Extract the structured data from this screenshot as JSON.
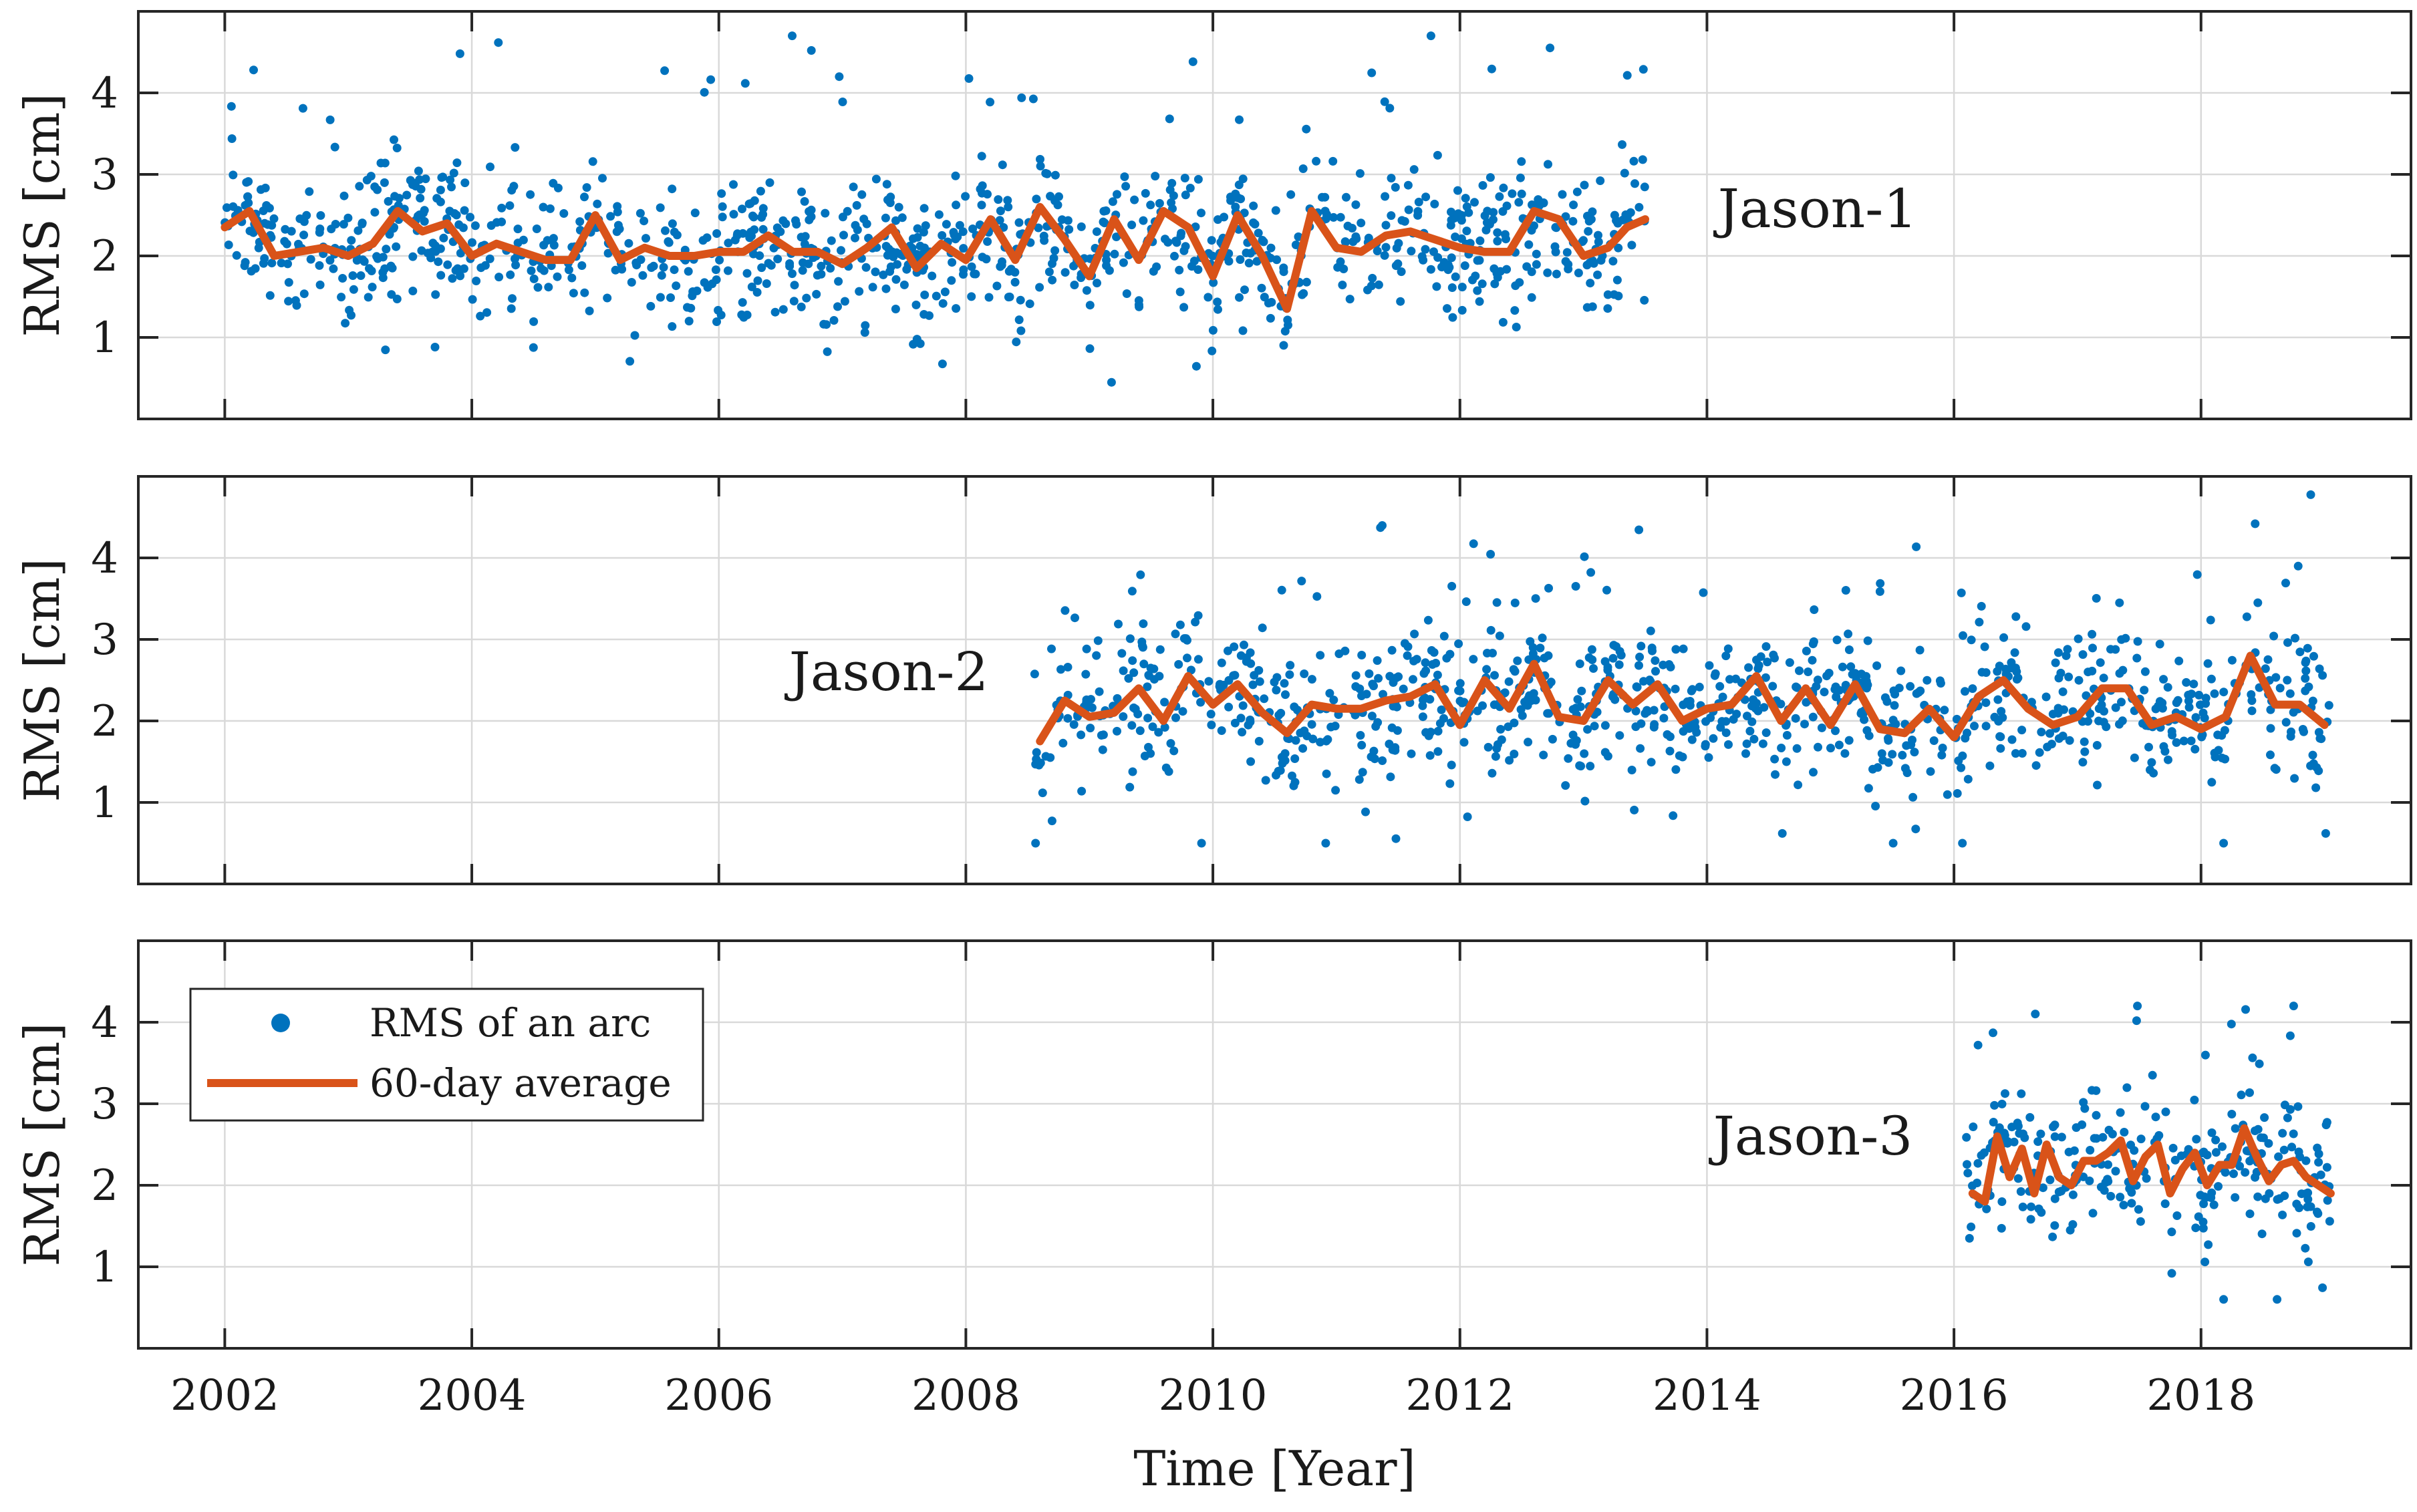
{
  "colors": {
    "points": "#0072bd",
    "average": "#d95319",
    "grid": "#d9d9d9",
    "axes": "#262626"
  },
  "chart_data": {
    "type": "scatter",
    "layout": "3 stacked subplots sharing x-axis",
    "xlabel": "Time [Year]",
    "xlim": [
      2001.3,
      2019.7
    ],
    "xticks": [
      2002,
      2004,
      2006,
      2008,
      2010,
      2012,
      2014,
      2016,
      2018
    ],
    "legend": {
      "location": "upper-left of bottom panel",
      "entries": [
        {
          "label": "RMS of an arc",
          "kind": "marker"
        },
        {
          "label": "60-day average",
          "kind": "line"
        }
      ]
    },
    "panels": [
      {
        "name": "Jason-1",
        "label": "Jason-1",
        "ylabel": "RMS [cm]",
        "ylim": [
          0,
          5
        ],
        "yticks": [
          1,
          2,
          3,
          4
        ],
        "x_range": [
          2002.0,
          2013.5
        ],
        "seed": 11,
        "series": [
          {
            "name": "RMS of an arc",
            "type": "scatter",
            "approx_mean_cm": 2.1,
            "approx_spread_cm": [
              0.2,
              4.7
            ]
          },
          {
            "name": "60-day average",
            "type": "line",
            "x": [
              2002.0,
              2002.2,
              2002.4,
              2002.6,
              2002.8,
              2003.0,
              2003.2,
              2003.4,
              2003.6,
              2003.8,
              2004.0,
              2004.2,
              2004.4,
              2004.6,
              2004.8,
              2005.0,
              2005.2,
              2005.4,
              2005.6,
              2005.8,
              2006.0,
              2006.2,
              2006.4,
              2006.6,
              2006.8,
              2007.0,
              2007.2,
              2007.4,
              2007.6,
              2007.8,
              2008.0,
              2008.2,
              2008.4,
              2008.6,
              2008.8,
              2009.0,
              2009.2,
              2009.4,
              2009.6,
              2009.8,
              2010.0,
              2010.2,
              2010.4,
              2010.6,
              2010.8,
              2011.0,
              2011.2,
              2011.4,
              2011.6,
              2011.8,
              2012.0,
              2012.2,
              2012.4,
              2012.6,
              2012.8,
              2013.0,
              2013.2,
              2013.35,
              2013.5
            ],
            "y": [
              2.35,
              2.55,
              2.0,
              2.05,
              2.1,
              2.0,
              2.15,
              2.55,
              2.3,
              2.4,
              2.0,
              2.15,
              2.05,
              1.95,
              1.95,
              2.5,
              1.95,
              2.1,
              2.0,
              2.0,
              2.05,
              2.05,
              2.25,
              2.05,
              2.05,
              1.9,
              2.1,
              2.35,
              1.85,
              2.15,
              1.95,
              2.45,
              1.95,
              2.6,
              2.2,
              1.75,
              2.45,
              1.95,
              2.55,
              2.35,
              1.75,
              2.5,
              2.0,
              1.35,
              2.55,
              2.1,
              2.05,
              2.25,
              2.3,
              2.2,
              2.1,
              2.05,
              2.05,
              2.55,
              2.45,
              2.0,
              2.1,
              2.35,
              2.45
            ]
          }
        ]
      },
      {
        "name": "Jason-2",
        "label": "Jason-2",
        "ylabel": "RMS [cm]",
        "ylim": [
          0,
          5
        ],
        "yticks": [
          1,
          2,
          3,
          4
        ],
        "x_range": [
          2008.55,
          2019.05
        ],
        "seed": 29,
        "series": [
          {
            "name": "RMS of an arc",
            "type": "scatter",
            "approx_mean_cm": 2.15,
            "approx_spread_cm": [
              0.5,
              4.85
            ]
          },
          {
            "name": "60-day average",
            "type": "line",
            "x": [
              2008.6,
              2008.8,
              2009.0,
              2009.2,
              2009.4,
              2009.6,
              2009.8,
              2010.0,
              2010.2,
              2010.4,
              2010.6,
              2010.8,
              2011.0,
              2011.2,
              2011.4,
              2011.6,
              2011.8,
              2012.0,
              2012.2,
              2012.4,
              2012.6,
              2012.8,
              2013.0,
              2013.2,
              2013.4,
              2013.6,
              2013.8,
              2014.0,
              2014.2,
              2014.4,
              2014.6,
              2014.8,
              2015.0,
              2015.2,
              2015.4,
              2015.6,
              2015.8,
              2016.0,
              2016.2,
              2016.4,
              2016.6,
              2016.8,
              2017.0,
              2017.2,
              2017.4,
              2017.6,
              2017.8,
              2018.0,
              2018.2,
              2018.4,
              2018.6,
              2018.8,
              2019.0
            ],
            "y": [
              1.75,
              2.25,
              2.05,
              2.1,
              2.4,
              2.0,
              2.55,
              2.2,
              2.45,
              2.1,
              1.85,
              2.2,
              2.15,
              2.15,
              2.25,
              2.3,
              2.45,
              1.95,
              2.5,
              2.15,
              2.7,
              2.05,
              2.0,
              2.5,
              2.2,
              2.45,
              2.0,
              2.15,
              2.2,
              2.55,
              2.0,
              2.4,
              1.95,
              2.45,
              1.9,
              1.85,
              2.15,
              1.8,
              2.3,
              2.5,
              2.15,
              1.95,
              2.05,
              2.4,
              2.4,
              1.95,
              2.05,
              1.9,
              2.05,
              2.8,
              2.2,
              2.2,
              1.95
            ]
          }
        ]
      },
      {
        "name": "Jason-3",
        "label": "Jason-3",
        "ylabel": "RMS [cm]",
        "ylim": [
          0,
          5
        ],
        "yticks": [
          1,
          2,
          3,
          4
        ],
        "x_range": [
          2016.1,
          2019.05
        ],
        "seed": 47,
        "series": [
          {
            "name": "RMS of an arc",
            "type": "scatter",
            "approx_mean_cm": 2.1,
            "approx_spread_cm": [
              0.6,
              4.2
            ]
          },
          {
            "name": "60-day average",
            "type": "line",
            "x": [
              2016.15,
              2016.25,
              2016.35,
              2016.45,
              2016.55,
              2016.65,
              2016.75,
              2016.85,
              2016.95,
              2017.05,
              2017.15,
              2017.25,
              2017.35,
              2017.45,
              2017.55,
              2017.65,
              2017.75,
              2017.85,
              2017.95,
              2018.05,
              2018.15,
              2018.25,
              2018.35,
              2018.45,
              2018.55,
              2018.65,
              2018.75,
              2018.85,
              2018.95,
              2019.05
            ],
            "y": [
              1.9,
              1.8,
              2.6,
              2.1,
              2.45,
              1.9,
              2.5,
              2.1,
              2.0,
              2.3,
              2.3,
              2.4,
              2.55,
              2.05,
              2.35,
              2.5,
              1.9,
              2.2,
              2.4,
              2.0,
              2.25,
              2.25,
              2.7,
              2.35,
              2.05,
              2.25,
              2.3,
              2.1,
              2.0,
              1.9
            ]
          }
        ]
      }
    ]
  }
}
